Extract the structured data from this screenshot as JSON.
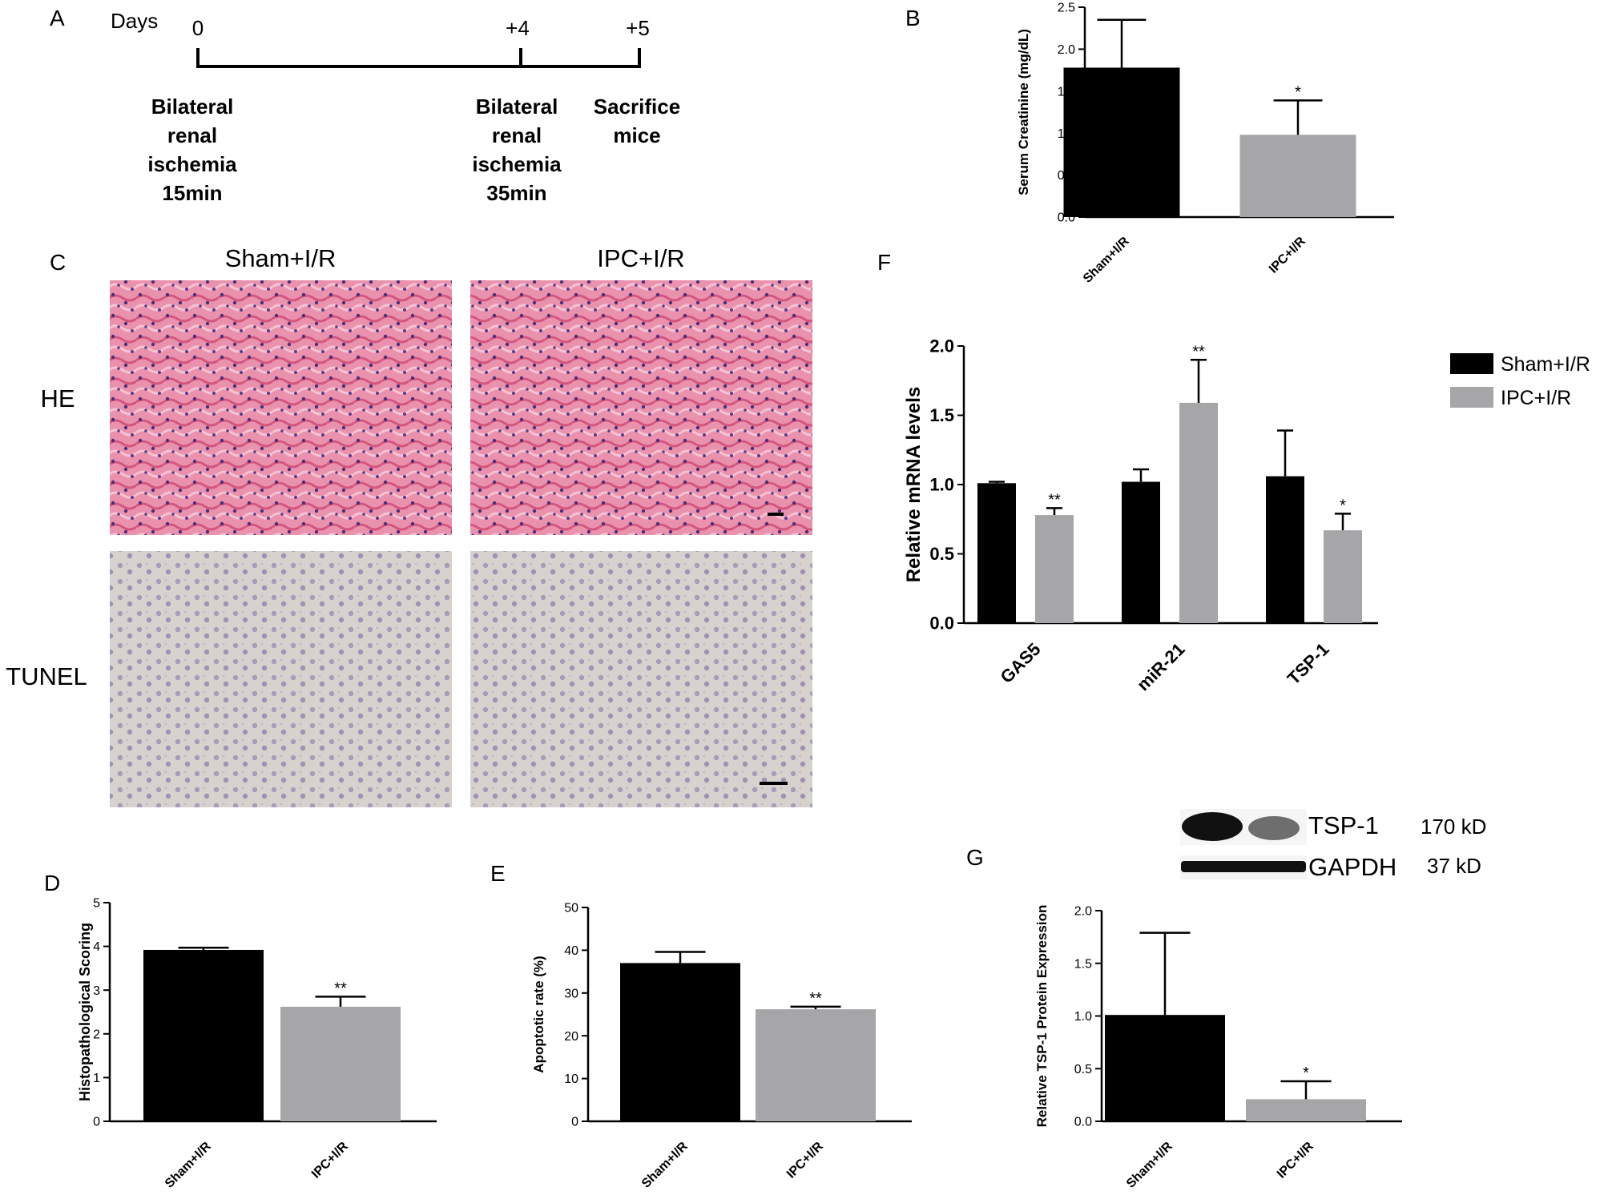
{
  "panel_letters": {
    "a": "A",
    "b": "B",
    "c": "C",
    "d": "D",
    "e": "E",
    "f": "F",
    "g": "G"
  },
  "timeline": {
    "days_label": "Days",
    "ticks": [
      "0",
      "+4",
      "+5"
    ],
    "events": [
      {
        "lines": [
          "Bilateral",
          "renal",
          "ischemia",
          "15min"
        ]
      },
      {
        "lines": [
          "Bilateral",
          "renal",
          "ischemia",
          "35min"
        ]
      },
      {
        "lines": [
          "Sacrifice",
          "mice"
        ]
      }
    ]
  },
  "histology": {
    "col_headers": [
      "Sham+I/R",
      "IPC+I/R"
    ],
    "row_labels": [
      "HE",
      "TUNEL"
    ]
  },
  "western": {
    "bands": [
      {
        "name": "TSP-1",
        "size": "170 kD"
      },
      {
        "name": "GAPDH",
        "size": "37 kD"
      }
    ]
  },
  "colors": {
    "sham": "#000000",
    "ipc": "#a6a6a8",
    "he": "#e88aa8",
    "tunel": "#d6d0cc"
  },
  "chart_data": [
    {
      "panel": "B",
      "type": "bar",
      "categories": [
        "Sham+I/R",
        "IPC+I/R"
      ],
      "values": [
        1.78,
        0.98
      ],
      "errors": [
        0.57,
        0.41
      ],
      "significance": [
        "",
        "*"
      ],
      "ylabel": "Serum Creatinine (mg/dL)",
      "ylim": [
        0,
        2.5
      ],
      "yticks": [
        "0.0",
        "0.5",
        "1.0",
        "1.5",
        "2.0",
        "2.5"
      ]
    },
    {
      "panel": "D",
      "type": "bar",
      "categories": [
        "Sham+I/R",
        "IPC+I/R"
      ],
      "values": [
        3.92,
        2.62
      ],
      "errors": [
        0.05,
        0.23
      ],
      "significance": [
        "",
        "**"
      ],
      "ylabel": "Histopathological Scoring",
      "ylim": [
        0,
        5
      ],
      "yticks": [
        "0",
        "1",
        "2",
        "3",
        "4",
        "5"
      ]
    },
    {
      "panel": "E",
      "type": "bar",
      "categories": [
        "Sham+I/R",
        "IPC+I/R"
      ],
      "values": [
        37,
        26.2
      ],
      "errors": [
        2.6,
        0.6
      ],
      "significance": [
        "",
        "**"
      ],
      "ylabel": "Apoptotic rate (%)",
      "ylim": [
        0,
        50
      ],
      "yticks": [
        "0",
        "10",
        "20",
        "30",
        "40",
        "50"
      ]
    },
    {
      "panel": "F",
      "type": "bar",
      "categories": [
        "GAS5",
        "miR-21",
        "TSP-1"
      ],
      "series": [
        {
          "name": "Sham+I/R",
          "values": [
            1.01,
            1.02,
            1.06
          ],
          "errors": [
            0.01,
            0.09,
            0.33
          ],
          "significance": [
            "",
            "",
            ""
          ]
        },
        {
          "name": "IPC+I/R",
          "values": [
            0.78,
            1.59,
            0.67
          ],
          "errors": [
            0.05,
            0.31,
            0.12
          ],
          "significance": [
            "**",
            "**",
            "*"
          ]
        }
      ],
      "ylabel": "Relative mRNA levels",
      "ylim": [
        0,
        2.0
      ],
      "yticks": [
        "0.0",
        "0.5",
        "1.0",
        "1.5",
        "2.0"
      ],
      "legend": "top-right"
    },
    {
      "panel": "G",
      "type": "bar",
      "categories": [
        "Sham+I/R",
        "IPC+I/R"
      ],
      "values": [
        1.01,
        0.21
      ],
      "errors": [
        0.78,
        0.17
      ],
      "significance": [
        "",
        "*"
      ],
      "ylabel": "Relative TSP-1 Protein Expression",
      "ylim": [
        0,
        2.0
      ],
      "yticks": [
        "0.0",
        "0.5",
        "1.0",
        "1.5",
        "2.0"
      ]
    }
  ]
}
